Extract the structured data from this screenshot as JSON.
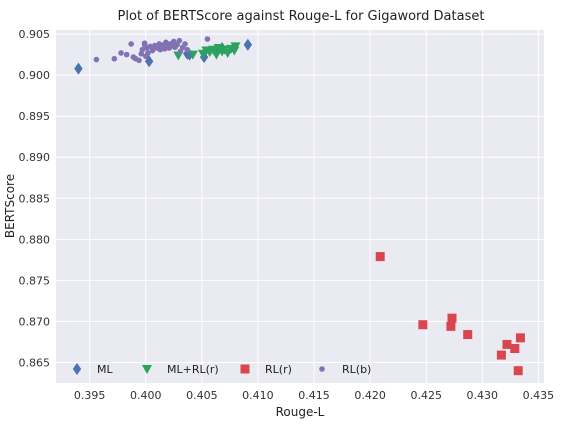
{
  "chart_data": {
    "type": "scatter",
    "title": "Plot of BERTScore against Rouge-L for Gigaword Dataset",
    "xlabel": "Rouge-L",
    "ylabel": "BERTScore",
    "xlim": [
      0.392,
      0.4355
    ],
    "ylim": [
      0.8625,
      0.9055
    ],
    "x_ticks": [
      0.395,
      0.4,
      0.405,
      0.41,
      0.415,
      0.42,
      0.425,
      0.43,
      0.435
    ],
    "x_tick_labels": [
      "0.395",
      "0.400",
      "0.405",
      "0.410",
      "0.415",
      "0.420",
      "0.425",
      "0.430",
      "0.435"
    ],
    "y_ticks": [
      0.865,
      0.87,
      0.875,
      0.88,
      0.885,
      0.89,
      0.895,
      0.9,
      0.905
    ],
    "y_tick_labels": [
      "0.865",
      "0.870",
      "0.875",
      "0.880",
      "0.885",
      "0.890",
      "0.895",
      "0.900",
      "0.905"
    ],
    "grid": true,
    "background": "#eaeaf2",
    "legend_position": "bottom-left",
    "series": [
      {
        "name": "ML",
        "marker": "diamond",
        "color": "#4c72b0",
        "points": [
          [
            0.394,
            0.9008
          ],
          [
            0.4003,
            0.9017
          ],
          [
            0.4037,
            0.9026
          ],
          [
            0.4039,
            0.9025
          ],
          [
            0.4062,
            0.903
          ],
          [
            0.4068,
            0.9033
          ],
          [
            0.4091,
            0.9037
          ],
          [
            0.4052,
            0.9022
          ]
        ]
      },
      {
        "name": "ML+RL(r)",
        "marker": "triangle-down",
        "color": "#2ca25f",
        "points": [
          [
            0.4029,
            0.9024
          ],
          [
            0.4042,
            0.9025
          ],
          [
            0.4051,
            0.9026
          ],
          [
            0.4054,
            0.903
          ],
          [
            0.4057,
            0.9028
          ],
          [
            0.406,
            0.9031
          ],
          [
            0.4063,
            0.9025
          ],
          [
            0.4065,
            0.9033
          ],
          [
            0.4068,
            0.9029
          ],
          [
            0.407,
            0.9031
          ],
          [
            0.4073,
            0.9027
          ],
          [
            0.4076,
            0.9032
          ],
          [
            0.4079,
            0.903
          ],
          [
            0.408,
            0.9035
          ]
        ]
      },
      {
        "name": "RL(r)",
        "marker": "square",
        "color": "#d9464e",
        "points": [
          [
            0.4209,
            0.8779
          ],
          [
            0.4247,
            0.8696
          ],
          [
            0.4272,
            0.8694
          ],
          [
            0.4273,
            0.8704
          ],
          [
            0.4287,
            0.8684
          ],
          [
            0.4317,
            0.8659
          ],
          [
            0.4322,
            0.8672
          ],
          [
            0.4329,
            0.8667
          ],
          [
            0.4334,
            0.868
          ],
          [
            0.4332,
            0.864
          ]
        ]
      },
      {
        "name": "RL(b)",
        "marker": "circle",
        "color": "#8172b3",
        "points": [
          [
            0.3956,
            0.9019
          ],
          [
            0.3972,
            0.902
          ],
          [
            0.3978,
            0.9027
          ],
          [
            0.3983,
            0.9025
          ],
          [
            0.3987,
            0.9038
          ],
          [
            0.3989,
            0.9022
          ],
          [
            0.3991,
            0.902
          ],
          [
            0.3994,
            0.9018
          ],
          [
            0.3996,
            0.9026
          ],
          [
            0.3997,
            0.9031
          ],
          [
            0.3999,
            0.9037
          ],
          [
            0.3999,
            0.9039
          ],
          [
            0.4,
            0.9023
          ],
          [
            0.4001,
            0.9033
          ],
          [
            0.4002,
            0.9027
          ],
          [
            0.4004,
            0.9035
          ],
          [
            0.4006,
            0.903
          ],
          [
            0.4008,
            0.9036
          ],
          [
            0.401,
            0.9033
          ],
          [
            0.4012,
            0.9038
          ],
          [
            0.4013,
            0.9031
          ],
          [
            0.4014,
            0.9034
          ],
          [
            0.4016,
            0.9037
          ],
          [
            0.4017,
            0.9032
          ],
          [
            0.4018,
            0.904
          ],
          [
            0.402,
            0.9035
          ],
          [
            0.4021,
            0.9033
          ],
          [
            0.4022,
            0.9038
          ],
          [
            0.4024,
            0.9036
          ],
          [
            0.4025,
            0.9041
          ],
          [
            0.4026,
            0.9034
          ],
          [
            0.4028,
            0.9037
          ],
          [
            0.403,
            0.9042
          ],
          [
            0.4031,
            0.9029
          ],
          [
            0.4033,
            0.9034
          ],
          [
            0.4035,
            0.9038
          ],
          [
            0.4037,
            0.9031
          ],
          [
            0.4055,
            0.9044
          ]
        ]
      }
    ]
  }
}
